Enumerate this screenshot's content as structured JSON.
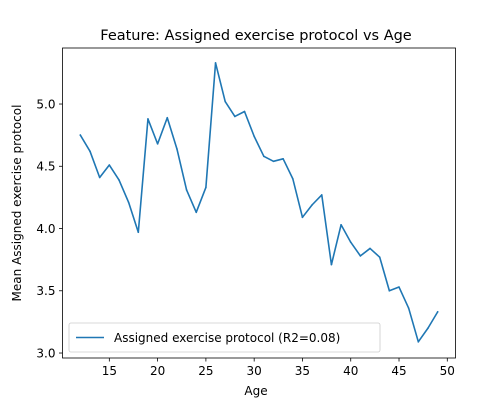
{
  "chart_data": {
    "type": "line",
    "title": "Feature: Assigned exercise protocol vs Age",
    "xlabel": "Age",
    "ylabel": "Mean Assigned exercise protocol",
    "xlim": [
      10.15,
      50.85
    ],
    "ylim": [
      2.96,
      5.45
    ],
    "xticks": [
      15,
      20,
      25,
      30,
      35,
      40,
      45,
      50
    ],
    "yticks": [
      3.0,
      3.5,
      4.0,
      4.5,
      5.0
    ],
    "xtick_labels": [
      "15",
      "20",
      "25",
      "30",
      "35",
      "40",
      "45",
      "50"
    ],
    "ytick_labels": [
      "3.0",
      "3.5",
      "4.0",
      "4.5",
      "5.0"
    ],
    "grid": false,
    "legend_position": "lower-left",
    "series": [
      {
        "name": "Assigned exercise protocol (R2=0.08)",
        "color": "#1f77b4",
        "x": [
          12,
          13,
          14,
          15,
          16,
          17,
          18,
          19,
          20,
          21,
          22,
          23,
          24,
          25,
          26,
          27,
          28,
          29,
          30,
          31,
          32,
          33,
          34,
          35,
          36,
          37,
          38,
          39,
          40,
          41,
          42,
          43,
          44,
          45,
          46,
          47,
          48,
          49
        ],
        "y": [
          4.75,
          4.62,
          4.41,
          4.51,
          4.39,
          4.21,
          3.97,
          4.88,
          4.68,
          4.89,
          4.64,
          4.31,
          4.13,
          4.33,
          5.33,
          5.02,
          4.9,
          4.94,
          4.74,
          4.58,
          4.54,
          4.56,
          4.4,
          4.09,
          4.19,
          4.27,
          3.71,
          4.03,
          3.89,
          3.78,
          3.84,
          3.77,
          3.5,
          3.53,
          3.36,
          3.09,
          3.2,
          3.33
        ]
      }
    ]
  }
}
